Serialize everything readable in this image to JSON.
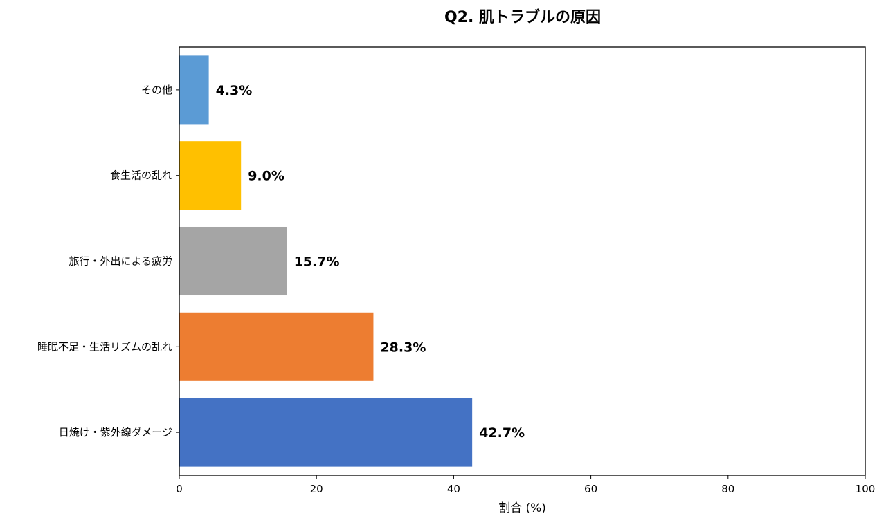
{
  "chart_data": {
    "type": "bar",
    "orientation": "horizontal",
    "title": "Q2. 肌トラブルの原因",
    "xlabel": "割合 (%)",
    "ylabel": "",
    "xlim": [
      0,
      100
    ],
    "xticks": [
      "0",
      "20",
      "40",
      "60",
      "80",
      "100"
    ],
    "categories": [
      "その他",
      "食生活の乱れ",
      "旅行・外出による疲労",
      "睡眠不足・生活リズムの乱れ",
      "日焼け・紫外線ダメージ"
    ],
    "values": [
      4.3,
      9.0,
      15.7,
      28.3,
      42.7
    ],
    "value_labels": [
      "4.3%",
      "9.0%",
      "15.7%",
      "28.3%",
      "42.7%"
    ],
    "colors": [
      "#5b9bd5",
      "#ffc000",
      "#a5a5a5",
      "#ed7d31",
      "#4472c4"
    ],
    "grid": false,
    "legend": "none"
  }
}
